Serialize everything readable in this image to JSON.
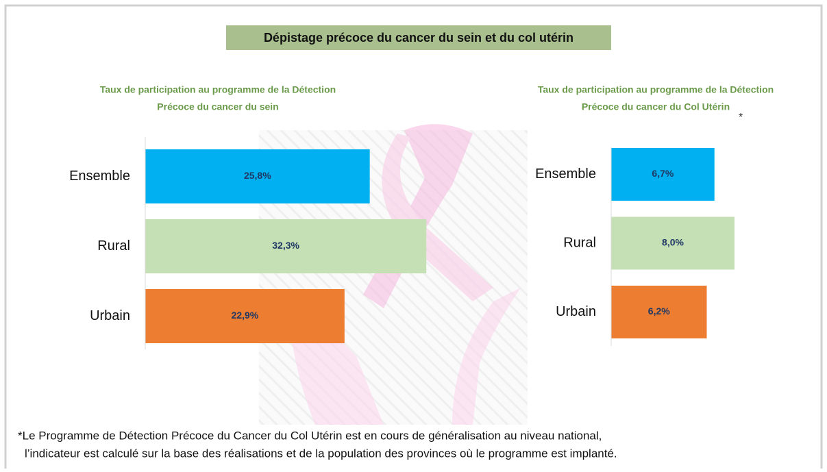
{
  "title": "Dépistage précoce du cancer du sein et du col utérin",
  "footnote": [
    "*Le Programme de Détection Précoce du Cancer du Col Utérin est en cours de généralisation au niveau national,",
    "l’indicateur est calculé sur la base des réalisations et de la population des provinces où le programme est implanté."
  ],
  "chart_data": [
    {
      "type": "hbar",
      "title": [
        "Taux de participation au programme de la Détection",
        "Précoce du cancer du sein"
      ],
      "categories": [
        "Ensemble",
        "Rural",
        "Urbain"
      ],
      "values": [
        25.8,
        32.3,
        22.9
      ],
      "value_labels": [
        "25,8%",
        "32,3%",
        "22,9%"
      ],
      "colors": [
        "#00b0f0",
        "#c5e0b4",
        "#ed7d31"
      ]
    },
    {
      "type": "hbar",
      "title": [
        "Taux de participation au programme de la Détection",
        "Précoce du cancer du Col Utérin"
      ],
      "title_note": "*",
      "categories": [
        "Ensemble",
        "Rural",
        "Urbain"
      ],
      "values": [
        6.7,
        8.0,
        6.2
      ],
      "value_labels": [
        "6,7%",
        "8,0%",
        "6,2%"
      ],
      "colors": [
        "#00b0f0",
        "#c5e0b4",
        "#ed7d31"
      ]
    }
  ]
}
